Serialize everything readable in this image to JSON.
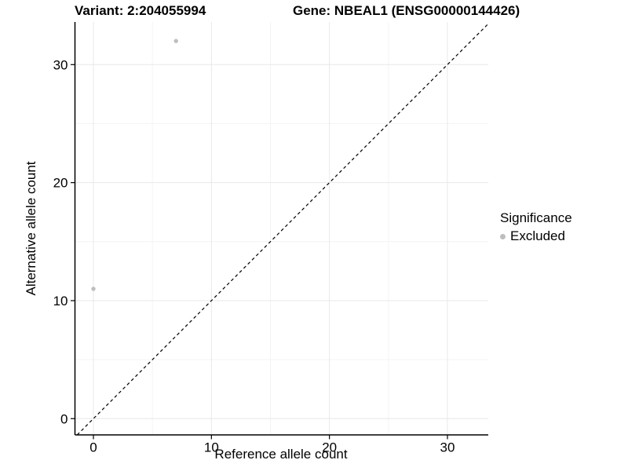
{
  "chart_data": {
    "type": "scatter",
    "title_left": "Variant: 2:204055994",
    "title_right": "Gene: NBEAL1 (ENSG00000144426)",
    "xlabel": "Reference allele count",
    "ylabel": "Alternative allele count",
    "x_ticks": [
      0,
      10,
      20,
      30
    ],
    "y_ticks": [
      0,
      10,
      20,
      30
    ],
    "x_minor_ticks": [
      5,
      15,
      25
    ],
    "y_minor_ticks": [
      5,
      15,
      25
    ],
    "xlim": [
      -1.56,
      33.46
    ],
    "ylim": [
      -1.38,
      33.61
    ],
    "grid": "major-and-minor",
    "points": [
      {
        "x": 7,
        "y": 32,
        "series": "Excluded"
      },
      {
        "x": 0,
        "y": 11,
        "series": "Excluded"
      }
    ],
    "identity_line": {
      "type": "y=x",
      "style": "dashed",
      "color": "#000000"
    },
    "legend": {
      "position": "right",
      "title": "Significance",
      "items": [
        {
          "label": "Excluded",
          "color": "#bebebe"
        }
      ]
    },
    "colors": {
      "point": "#bebebe",
      "grid_major": "#e8e8e8",
      "grid_minor": "#f4f4f4",
      "axis": "#000000",
      "background": "#ffffff",
      "text": "#000000"
    }
  }
}
